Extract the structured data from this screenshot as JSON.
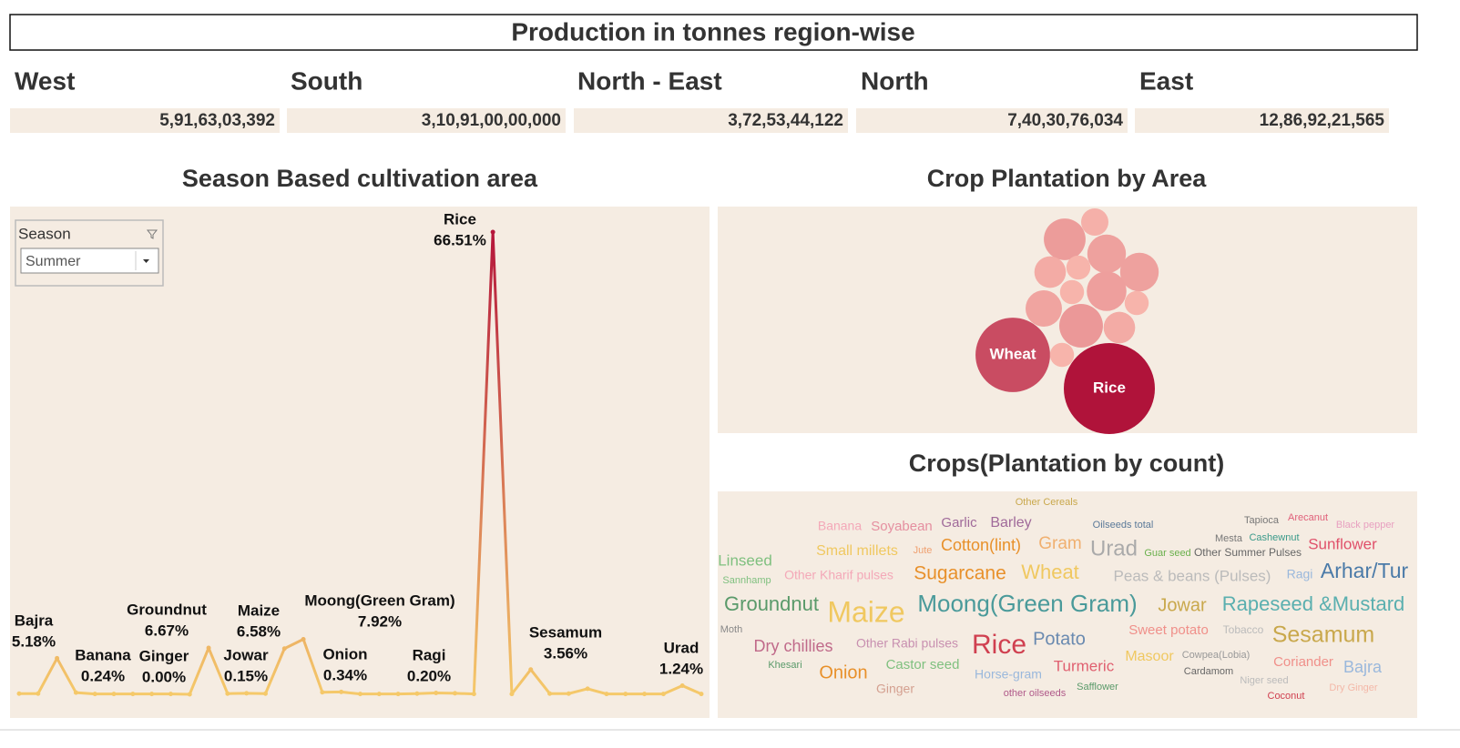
{
  "header": {
    "title": "Production in tonnes region-wise"
  },
  "regions": [
    {
      "name": "West",
      "value": "5,91,63,03,392"
    },
    {
      "name": "South",
      "value": "3,10,91,00,00,000"
    },
    {
      "name": "North - East",
      "value": "3,72,53,44,122"
    },
    {
      "name": "North",
      "value": "7,40,30,76,034"
    },
    {
      "name": "East",
      "value": "12,86,92,21,565"
    }
  ],
  "filter": {
    "label": "Season",
    "selected": "Summer"
  },
  "chart_data": [
    {
      "type": "line",
      "title": "Season Based cultivation area",
      "categories": [
        null,
        null,
        "Bajra",
        "Banana",
        null,
        null,
        null,
        null,
        null,
        "Ginger",
        "Groundnut",
        null,
        "Jowar",
        null,
        "Maize",
        "Moong(Green Gram)",
        null,
        "Onion",
        null,
        null,
        null,
        null,
        "Ragi",
        null,
        null,
        "Rice",
        null,
        "Sesamum",
        null,
        null,
        null,
        null,
        null,
        null,
        null,
        "Urad",
        null
      ],
      "values": [
        0.1,
        0.1,
        5.18,
        0.24,
        0.05,
        0.05,
        0.05,
        0.05,
        0.05,
        0,
        6.67,
        0.1,
        0.15,
        0.1,
        6.58,
        7.92,
        0.3,
        0.34,
        0.05,
        0.05,
        0.05,
        0.1,
        0.2,
        0.15,
        0.05,
        66.51,
        0.05,
        3.56,
        0.1,
        0.1,
        0.8,
        0.05,
        0.05,
        0.05,
        0.05,
        1.24,
        0.05
      ],
      "value_labels": [
        null,
        null,
        "5.18%",
        "0.24%",
        null,
        null,
        null,
        null,
        null,
        "0.00%",
        "6.67%",
        null,
        "0.15%",
        null,
        "6.58%",
        "7.92%",
        null,
        "0.34%",
        null,
        null,
        null,
        null,
        "0.20%",
        null,
        null,
        "66.51%",
        null,
        "3.56%",
        null,
        null,
        null,
        null,
        null,
        null,
        null,
        "1.24%",
        null
      ],
      "color_range": [
        "#f5c96a",
        "#b5163b"
      ]
    },
    {
      "type": "bubble",
      "title": "Crop Plantation by Area",
      "categories": [
        "Rice",
        "Wheat",
        null,
        null,
        null,
        null,
        null,
        null,
        null,
        null,
        null,
        null,
        null,
        null,
        null
      ],
      "values": [
        100,
        67,
        21,
        9,
        18,
        18,
        12,
        7,
        7,
        19,
        16,
        7,
        23,
        12,
        7
      ],
      "color_range": [
        "#fcc0b4",
        "#b0133a"
      ]
    },
    {
      "type": "wordcloud",
      "title": "Crops(Plantation by count)",
      "categories": [
        "Other Cereals",
        "Banana",
        "Soyabean",
        "Garlic",
        "Barley",
        "Oilseeds total",
        "Tapioca",
        "Arecanut",
        "Black pepper",
        "Mesta",
        "Cashewnut",
        "Sunflower",
        "Small millets",
        "Jute",
        "Cotton(lint)",
        "Gram",
        "Urad",
        "Guar seed",
        "Other Summer Pulses",
        "Linseed",
        "Sannhamp",
        "Other Kharif pulses",
        "Sugarcane",
        "Wheat",
        "Peas & beans (Pulses)",
        "Ragi",
        "Arhar/Tur",
        "Groundnut",
        "Maize",
        "Moong(Green Gram)",
        "Jowar",
        "Rapeseed &Mustard",
        "Moth",
        "Sweet potato",
        "Tobacco",
        "Sesamum",
        "Dry chillies",
        "Other Rabi pulses",
        "Rice",
        "Potato",
        "Khesari",
        "Onion",
        "Castor seed",
        "Turmeric",
        "Masoor",
        "Cowpea(Lobia)",
        "Coriander",
        "Bajra",
        "Horse-gram",
        "Cardamom",
        "Niger seed",
        "Dry Ginger",
        "Ginger",
        "Safflower",
        "other oilseeds",
        "Coconut"
      ],
      "values": [
        11,
        14,
        15,
        15,
        16,
        11,
        11,
        11,
        11,
        11,
        11,
        17,
        16,
        11,
        18,
        19,
        24,
        11,
        12,
        17,
        11,
        14,
        21,
        22,
        17,
        14,
        23,
        22,
        32,
        26,
        20,
        22,
        11,
        15,
        12,
        25,
        18,
        14,
        30,
        20,
        11,
        20,
        15,
        17,
        16,
        11,
        15,
        18,
        14,
        11,
        11,
        11,
        14,
        11,
        11,
        11
      ],
      "colors": [
        "#c9a84c",
        "#f4a8b8",
        "#e58fa0",
        "#a06a9a",
        "#a06a9a",
        "#5b7a99",
        "#777777",
        "#e0607a",
        "#e8a0c0",
        "#777777",
        "#3a9a8a",
        "#e0506a",
        "#f0c860",
        "#f0a070",
        "#e8902a",
        "#f0b070",
        "#aaaaaa",
        "#6ab04c",
        "#666666",
        "#7fc07f",
        "#7fc07f",
        "#f4a8b8",
        "#e8902a",
        "#f0c860",
        "#bbbbbb",
        "#9ab8dc",
        "#4a7aa8",
        "#5a9a6a",
        "#f0c860",
        "#4a9a9a",
        "#c9a84c",
        "#5aafaf",
        "#888888",
        "#f0908a",
        "#bbbbbb",
        "#c9a84c",
        "#c06a8a",
        "#c890b0",
        "#d04050",
        "#6a8ab0",
        "#5a9a6a",
        "#e8902a",
        "#7fc07f",
        "#e06070",
        "#f0c860",
        "#999999",
        "#f0908a",
        "#9ab8dc",
        "#9ab8dc",
        "#666666",
        "#bbbbbb",
        "#f4b8a8",
        "#d4a090",
        "#5a9a6a",
        "#b05a8a",
        "#d04050"
      ]
    }
  ]
}
